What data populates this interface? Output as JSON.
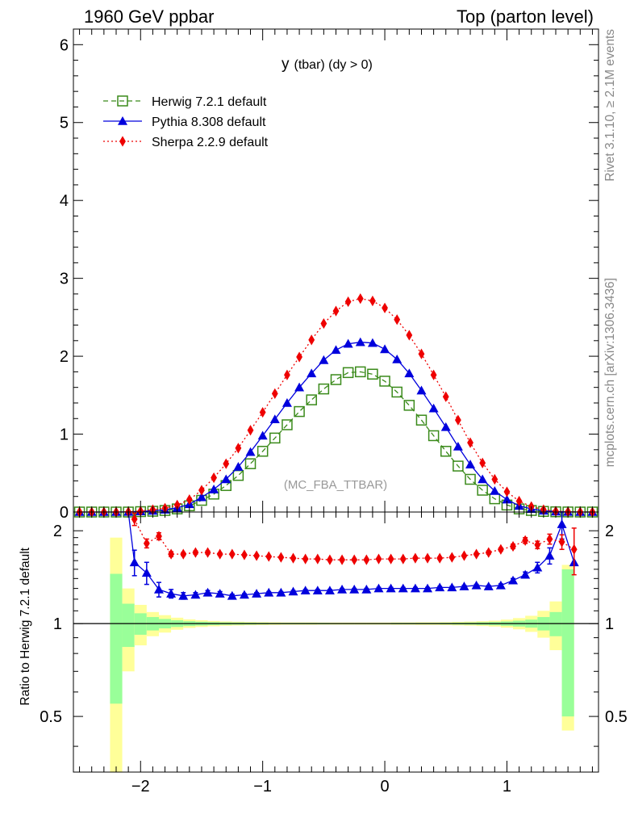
{
  "header": {
    "left": "1960 GeV ppbar",
    "right": "Top (parton level)"
  },
  "side_texts": {
    "rivet": "Rivet 3.1.10, ≥ 2.1M events",
    "mcplots": "mcplots.cern.ch [arXiv:1306.3436]"
  },
  "chart_data": [
    {
      "type": "line",
      "title": "y (tbar) (dy > 0)",
      "title_main": "y",
      "title_sub": "(tbar) (dy > 0)",
      "watermark": "(MC_FBA_TTBAR)",
      "xlim": [
        -2.55,
        1.75
      ],
      "ylim": [
        0,
        6.2
      ],
      "yticks": [
        0,
        1,
        2,
        3,
        4,
        5,
        6
      ],
      "xlabel": "",
      "ylabel": "",
      "legend_position": "top-left",
      "x": [
        -2.5,
        -2.4,
        -2.3,
        -2.2,
        -2.1,
        -2.0,
        -1.9,
        -1.8,
        -1.7,
        -1.6,
        -1.5,
        -1.4,
        -1.3,
        -1.2,
        -1.1,
        -1.0,
        -0.9,
        -0.8,
        -0.7,
        -0.6,
        -0.5,
        -0.4,
        -0.3,
        -0.2,
        -0.1,
        0.0,
        0.1,
        0.2,
        0.3,
        0.4,
        0.5,
        0.6,
        0.7,
        0.8,
        0.9,
        1.0,
        1.1,
        1.2,
        1.3,
        1.4,
        1.5,
        1.6,
        1.7
      ],
      "series": [
        {
          "name": "Herwig 7.2.1 default",
          "color": "#3a8a1a",
          "style": "dashed",
          "marker": "open-square",
          "values": [
            0.0,
            0.0,
            0.0,
            0.0,
            0.0,
            0.005,
            0.01,
            0.02,
            0.04,
            0.08,
            0.15,
            0.23,
            0.34,
            0.47,
            0.62,
            0.78,
            0.95,
            1.12,
            1.29,
            1.44,
            1.58,
            1.7,
            1.79,
            1.8,
            1.77,
            1.68,
            1.54,
            1.37,
            1.18,
            0.98,
            0.78,
            0.59,
            0.42,
            0.28,
            0.17,
            0.09,
            0.04,
            0.02,
            0.008,
            0.003,
            0.001,
            0.0,
            0.0
          ]
        },
        {
          "name": "Pythia 8.308 default",
          "color": "#0000dd",
          "style": "solid",
          "marker": "filled-triangle",
          "values": [
            0.0,
            0.0,
            0.0,
            0.0,
            0.002,
            0.008,
            0.016,
            0.03,
            0.055,
            0.1,
            0.19,
            0.29,
            0.42,
            0.58,
            0.77,
            0.98,
            1.19,
            1.4,
            1.6,
            1.78,
            1.95,
            2.08,
            2.16,
            2.18,
            2.17,
            2.09,
            1.96,
            1.78,
            1.56,
            1.33,
            1.09,
            0.84,
            0.61,
            0.42,
            0.27,
            0.16,
            0.08,
            0.04,
            0.017,
            0.006,
            0.002,
            0.0,
            0.0
          ]
        },
        {
          "name": "Sherpa 2.2.9 default",
          "color": "#ee0000",
          "style": "dotted",
          "marker": "filled-diamond",
          "values": [
            0.0,
            0.0,
            0.0,
            0.0,
            0.003,
            0.012,
            0.03,
            0.05,
            0.09,
            0.16,
            0.28,
            0.44,
            0.62,
            0.82,
            1.05,
            1.28,
            1.52,
            1.76,
            1.99,
            2.21,
            2.42,
            2.58,
            2.7,
            2.74,
            2.71,
            2.62,
            2.47,
            2.27,
            2.03,
            1.76,
            1.48,
            1.18,
            0.89,
            0.63,
            0.42,
            0.26,
            0.14,
            0.07,
            0.03,
            0.01,
            0.004,
            0.001,
            0.0
          ]
        }
      ]
    },
    {
      "type": "line",
      "title": "",
      "ylabel": "Ratio to Herwig 7.2.1 default",
      "xlim": [
        -2.55,
        1.75
      ],
      "ylim": [
        0.33,
        2.3
      ],
      "xticks": [
        -2,
        -1,
        0,
        1
      ],
      "xtick_labels": [
        "−2",
        "−1",
        "0",
        "1"
      ],
      "yticks": [
        0.5,
        1,
        2
      ],
      "ytick_labels": [
        "0.5",
        "1",
        "2"
      ],
      "reference_line": 1,
      "band_x": [
        -2.2,
        -2.1,
        -2.0,
        -1.9,
        -1.8,
        -1.7,
        -1.6,
        -1.5,
        -1.4,
        -1.3,
        -1.2,
        -1.1,
        -1.0,
        -0.9,
        -0.8,
        -0.7,
        -0.6,
        -0.5,
        -0.4,
        -0.3,
        -0.2,
        -0.1,
        0.0,
        0.1,
        0.2,
        0.3,
        0.4,
        0.5,
        0.6,
        0.7,
        0.8,
        0.9,
        1.0,
        1.1,
        1.2,
        1.3,
        1.4,
        1.5,
        1.6
      ],
      "band_stat": [
        0.45,
        0.16,
        0.08,
        0.05,
        0.035,
        0.025,
        0.018,
        0.014,
        0.011,
        0.009,
        0.008,
        0.007,
        0.006,
        0.005,
        0.005,
        0.005,
        0.005,
        0.005,
        0.004,
        0.004,
        0.004,
        0.004,
        0.004,
        0.005,
        0.005,
        0.005,
        0.005,
        0.006,
        0.007,
        0.008,
        0.01,
        0.012,
        0.016,
        0.022,
        0.03,
        0.05,
        0.09,
        0.5
      ],
      "band_total": [
        0.9,
        0.3,
        0.15,
        0.09,
        0.065,
        0.045,
        0.032,
        0.025,
        0.02,
        0.016,
        0.014,
        0.012,
        0.011,
        0.01,
        0.009,
        0.009,
        0.009,
        0.008,
        0.008,
        0.008,
        0.008,
        0.008,
        0.008,
        0.009,
        0.009,
        0.01,
        0.01,
        0.011,
        0.013,
        0.015,
        0.018,
        0.022,
        0.03,
        0.042,
        0.06,
        0.1,
        0.18,
        0.55
      ],
      "series": [
        {
          "name": "Pythia 8.308 default",
          "color": "#0000dd",
          "marker": "filled-triangle",
          "x": [
            -2.05,
            -1.95,
            -1.85,
            -1.75,
            -1.65,
            -1.55,
            -1.45,
            -1.35,
            -1.25,
            -1.15,
            -1.05,
            -0.95,
            -0.85,
            -0.75,
            -0.65,
            -0.55,
            -0.45,
            -0.35,
            -0.25,
            -0.15,
            -0.05,
            0.05,
            0.15,
            0.25,
            0.35,
            0.45,
            0.55,
            0.65,
            0.75,
            0.85,
            0.95,
            1.05,
            1.15,
            1.25,
            1.35,
            1.45
          ],
          "values": [
            1.58,
            1.46,
            1.29,
            1.25,
            1.23,
            1.24,
            1.26,
            1.25,
            1.23,
            1.24,
            1.25,
            1.26,
            1.26,
            1.27,
            1.28,
            1.28,
            1.28,
            1.29,
            1.29,
            1.29,
            1.3,
            1.3,
            1.3,
            1.3,
            1.3,
            1.31,
            1.31,
            1.32,
            1.33,
            1.32,
            1.33,
            1.38,
            1.44,
            1.52,
            1.66,
            2.1
          ],
          "errors": [
            0.15,
            0.12,
            0.07,
            0.04,
            0.03,
            0.02,
            0.02,
            0.02,
            0.015,
            0.01,
            0.01,
            0.01,
            0.01,
            0.01,
            0.01,
            0.01,
            0.01,
            0.01,
            0.01,
            0.01,
            0.01,
            0.01,
            0.01,
            0.01,
            0.01,
            0.01,
            0.01,
            0.01,
            0.01,
            0.01,
            0.015,
            0.02,
            0.03,
            0.06,
            0.1,
            0.22
          ],
          "x_extra": [
            1.55
          ],
          "values_extra": [
            1.58
          ]
        },
        {
          "name": "Sherpa 2.2.9 default",
          "color": "#ee0000",
          "marker": "filled-diamond",
          "x": [
            -2.05,
            -1.95,
            -1.85,
            -1.75,
            -1.65,
            -1.55,
            -1.45,
            -1.35,
            -1.25,
            -1.15,
            -1.05,
            -0.95,
            -0.85,
            -0.75,
            -0.65,
            -0.55,
            -0.45,
            -0.35,
            -0.25,
            -0.15,
            -0.05,
            0.05,
            0.15,
            0.25,
            0.35,
            0.45,
            0.55,
            0.65,
            0.75,
            0.85,
            0.95,
            1.05,
            1.15,
            1.25,
            1.35,
            1.45,
            1.55
          ],
          "values": [
            2.18,
            1.82,
            1.92,
            1.68,
            1.68,
            1.7,
            1.7,
            1.68,
            1.68,
            1.67,
            1.66,
            1.65,
            1.64,
            1.63,
            1.62,
            1.62,
            1.61,
            1.61,
            1.61,
            1.61,
            1.62,
            1.62,
            1.62,
            1.63,
            1.63,
            1.63,
            1.64,
            1.66,
            1.68,
            1.7,
            1.74,
            1.78,
            1.86,
            1.8,
            1.88,
            1.84,
            1.74
          ],
          "errors": [
            0.1,
            0.06,
            0.05,
            0.03,
            0.02,
            0.02,
            0.02,
            0.015,
            0.01,
            0.01,
            0.01,
            0.01,
            0.01,
            0.01,
            0.01,
            0.01,
            0.01,
            0.01,
            0.01,
            0.01,
            0.01,
            0.01,
            0.01,
            0.01,
            0.01,
            0.01,
            0.01,
            0.01,
            0.015,
            0.02,
            0.02,
            0.03,
            0.04,
            0.05,
            0.07,
            0.1,
            0.3
          ]
        }
      ]
    }
  ]
}
